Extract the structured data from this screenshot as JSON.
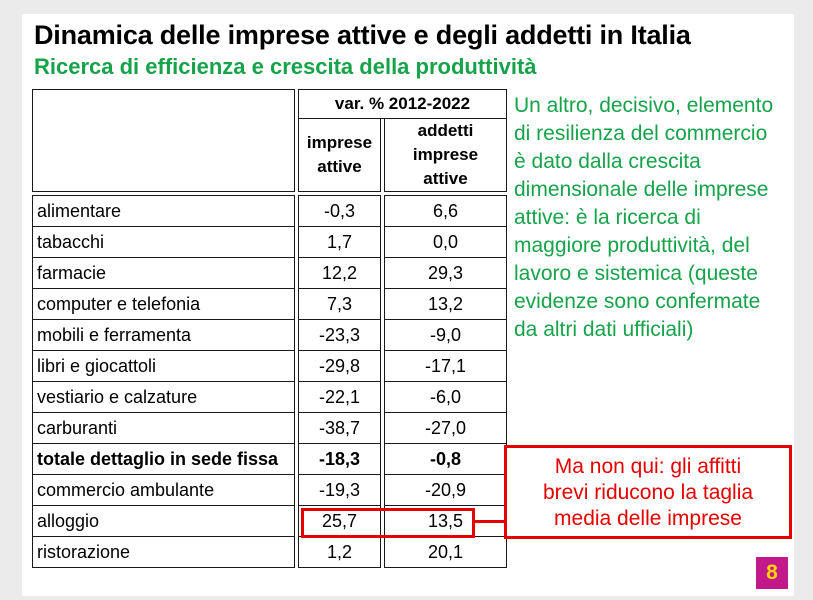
{
  "slide": {
    "title": "Dinamica delle imprese attive e degli addetti in Italia",
    "subtitle": "Ricerca di efficienza e crescita della produttività",
    "page_number": "8"
  },
  "table": {
    "period_header": "var. % 2012-2022",
    "col1_header_line1": "imprese",
    "col1_header_line2": "attive",
    "col2_header_line1": "addetti",
    "col2_header_line2": "imprese attive",
    "rows": [
      {
        "label": "alimentare",
        "imprese": "-0,3",
        "addetti": "6,6"
      },
      {
        "label": "tabacchi",
        "imprese": "1,7",
        "addetti": "0,0"
      },
      {
        "label": "farmacie",
        "imprese": "12,2",
        "addetti": "29,3"
      },
      {
        "label": "computer e telefonia",
        "imprese": "7,3",
        "addetti": "13,2"
      },
      {
        "label": "mobili e ferramenta",
        "imprese": "-23,3",
        "addetti": "-9,0"
      },
      {
        "label": "libri e giocattoli",
        "imprese": "-29,8",
        "addetti": "-17,1"
      },
      {
        "label": "vestiario e calzature",
        "imprese": "-22,1",
        "addetti": "-6,0"
      },
      {
        "label": "carburanti",
        "imprese": "-38,7",
        "addetti": "-27,0"
      },
      {
        "label": "totale dettaglio in sede fissa",
        "imprese": "-18,3",
        "addetti": "-0,8"
      },
      {
        "label": "commercio ambulante",
        "imprese": "-19,3",
        "addetti": "-20,9"
      },
      {
        "label": "alloggio",
        "imprese": "25,7",
        "addetti": "13,5"
      },
      {
        "label": "ristorazione",
        "imprese": "1,2",
        "addetti": "20,1"
      }
    ]
  },
  "commentary": "Un altro, decisivo, elemento di resilienza del commercio è dato dalla crescita dimensionale delle imprese attive: è la ricerca di maggiore produttività, del lavoro e sistemica (queste evidenze sono confermate da altri dati ufficiali)",
  "callout": {
    "line1": "Ma non qui: gli affitti",
    "line2": "brevi riducono la taglia",
    "line3": "media delle imprese"
  },
  "colors": {
    "green_text": "#16a34a",
    "red_highlight": "#e60000",
    "page_badge_bg": "#c2188a",
    "page_badge_text": "#ffd500"
  }
}
